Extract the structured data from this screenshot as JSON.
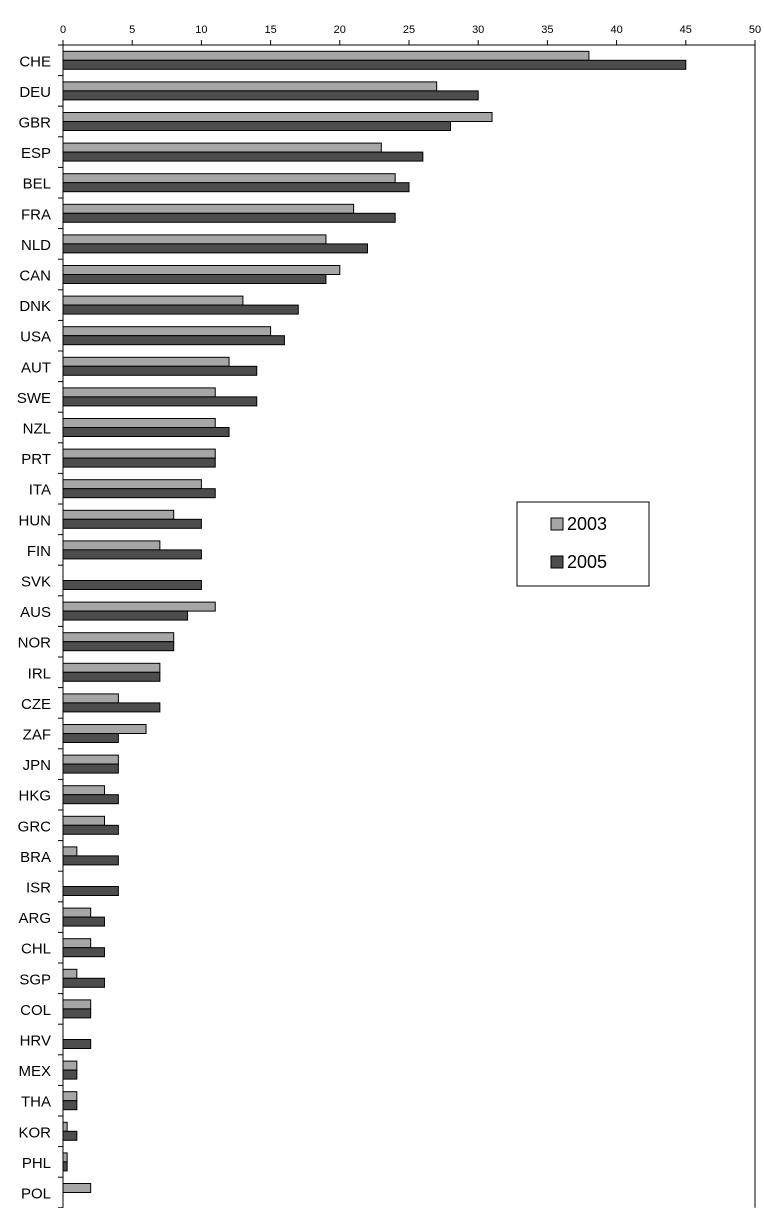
{
  "chart_data": {
    "type": "bar",
    "orientation": "horizontal",
    "title": "",
    "xlabel": "",
    "ylabel": "",
    "xlim": [
      0,
      50
    ],
    "x_ticks": [
      0,
      5,
      10,
      15,
      20,
      25,
      30,
      35,
      40,
      45,
      50
    ],
    "x_axis_position": "top",
    "grid": false,
    "legend_position": "right-middle",
    "categories": [
      "CHE",
      "DEU",
      "GBR",
      "ESP",
      "BEL",
      "FRA",
      "NLD",
      "CAN",
      "DNK",
      "USA",
      "AUT",
      "SWE",
      "NZL",
      "PRT",
      "ITA",
      "HUN",
      "FIN",
      "SVK",
      "AUS",
      "NOR",
      "IRL",
      "CZE",
      "ZAF",
      "JPN",
      "HKG",
      "GRC",
      "BRA",
      "ISR",
      "ARG",
      "CHL",
      "SGP",
      "COL",
      "HRV",
      "MEX",
      "THA",
      "KOR",
      "PHL",
      "POL"
    ],
    "series": [
      {
        "name": "2003",
        "color": "#a6a6a6",
        "values": [
          38,
          27,
          31,
          23,
          24,
          21,
          19,
          20,
          13,
          15,
          12,
          11,
          11,
          11,
          10,
          8,
          7,
          null,
          11,
          8,
          7,
          4,
          6,
          4,
          3,
          3,
          1,
          null,
          2,
          2,
          1,
          2,
          null,
          1,
          1,
          0.3,
          0.3,
          2
        ]
      },
      {
        "name": "2005",
        "color": "#4d4d4d",
        "values": [
          45,
          30,
          28,
          26,
          25,
          24,
          22,
          19,
          17,
          16,
          14,
          14,
          12,
          11,
          11,
          10,
          10,
          10,
          9,
          8,
          7,
          7,
          4,
          4,
          4,
          4,
          4,
          4,
          3,
          3,
          3,
          2,
          2,
          1,
          1,
          1,
          0.3,
          null
        ]
      }
    ]
  }
}
